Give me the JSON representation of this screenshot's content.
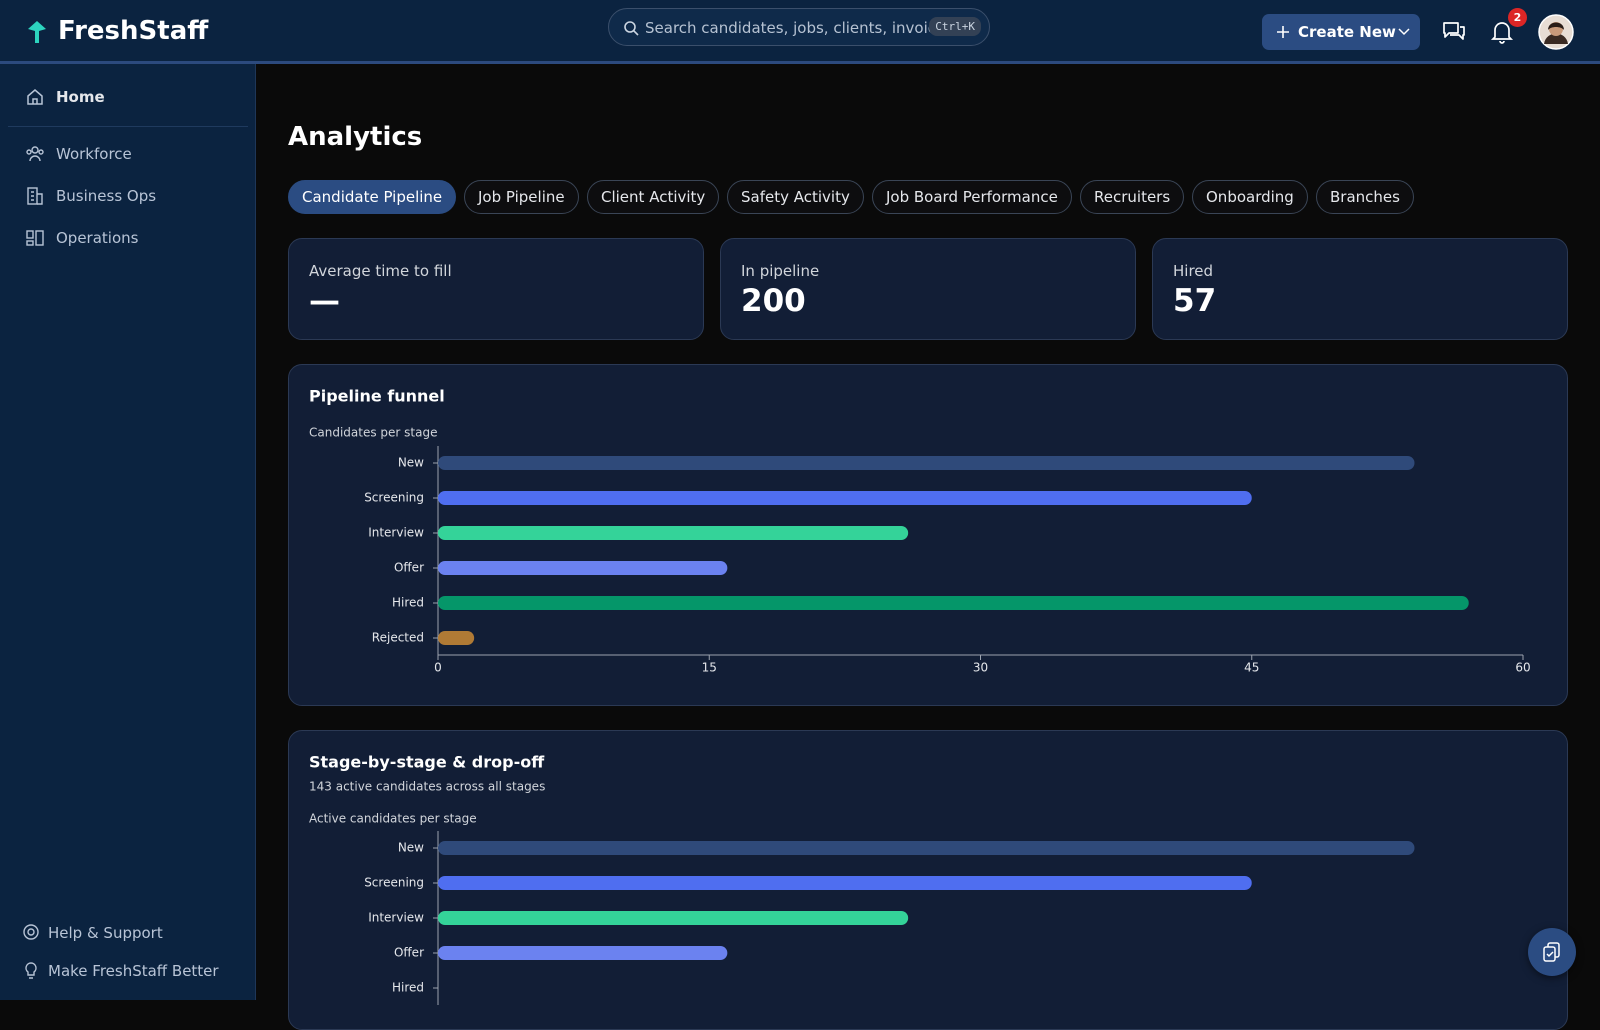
{
  "header": {
    "brand": "FreshStaff",
    "search_placeholder": "Search candidates, jobs, clients, invoices...",
    "search_shortcut": "Ctrl+K",
    "create_button": "Create New",
    "notification_count": "2"
  },
  "sidebar": {
    "nav": [
      "Home",
      "Workforce",
      "Business Ops",
      "Operations"
    ],
    "footer": [
      "Help & Support",
      "Make FreshStaff Better"
    ]
  },
  "page": {
    "title": "Analytics",
    "tabs": [
      "Candidate Pipeline",
      "Job Pipeline",
      "Client Activity",
      "Safety Activity",
      "Job Board Performance",
      "Recruiters",
      "Onboarding",
      "Branches"
    ],
    "active_tab": "Candidate Pipeline"
  },
  "stats": [
    {
      "label": "Average time to fill",
      "value": "—"
    },
    {
      "label": "In pipeline",
      "value": "200"
    },
    {
      "label": "Hired",
      "value": "57"
    }
  ],
  "chart_data": [
    {
      "type": "bar",
      "orientation": "horizontal",
      "title": "Pipeline funnel",
      "caption": "Candidates per stage",
      "categories": [
        "New",
        "Screening",
        "Interview",
        "Offer",
        "Hired",
        "Rejected"
      ],
      "values": [
        54,
        45,
        26,
        16,
        57,
        2
      ],
      "colors": [
        "#2f4a7a",
        "#4f6ef0",
        "#34d399",
        "#6b82f0",
        "#059669",
        "#b07a35"
      ],
      "xlim": [
        0,
        60
      ],
      "xticks": [
        0,
        15,
        30,
        45,
        60
      ]
    },
    {
      "type": "bar",
      "orientation": "horizontal",
      "title": "Stage-by-stage & drop-off",
      "subtitle": "143 active candidates across all stages",
      "caption": "Active candidates per stage",
      "categories": [
        "New",
        "Screening",
        "Interview",
        "Offer",
        "Hired"
      ],
      "values": [
        54,
        45,
        26,
        16,
        0
      ],
      "colors": [
        "#2f4a7a",
        "#4f6ef0",
        "#34d399",
        "#6b82f0",
        "#059669"
      ],
      "xlim": [
        0,
        60
      ]
    }
  ]
}
